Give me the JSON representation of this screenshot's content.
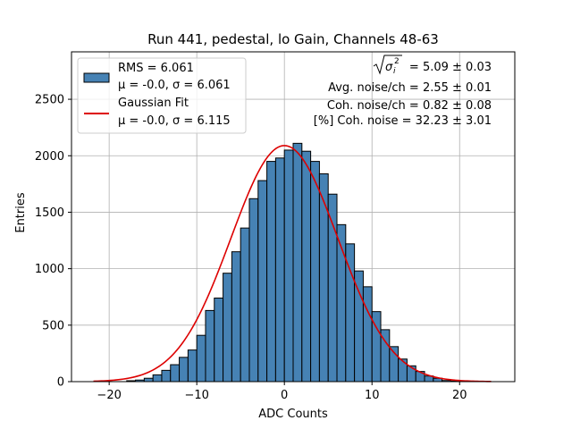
{
  "chart_data": {
    "type": "bar",
    "title": "Run 441, pedestal, lo Gain, Channels 48-63",
    "xlabel": "ADC Counts",
    "ylabel": "Entries",
    "xlim": [
      -24.3,
      26.3
    ],
    "ylim": [
      0,
      2920
    ],
    "xticks": [
      -20,
      -10,
      0,
      10,
      20
    ],
    "yticks": [
      0,
      500,
      1000,
      1500,
      2000,
      2500
    ],
    "xtick_labels": [
      "−20",
      "−10",
      "0",
      "10",
      "20"
    ],
    "ytick_labels": [
      "0",
      "500",
      "1000",
      "1500",
      "2000",
      "2500"
    ],
    "grid": true,
    "legend_position": "top-left",
    "colors": {
      "bars": "#4682b4",
      "fit": "#dd0000",
      "grid": "#b0b0b0"
    },
    "histogram": {
      "bin_start": -18,
      "bin_width": 1,
      "values": [
        8,
        14,
        30,
        60,
        100,
        150,
        215,
        280,
        410,
        630,
        740,
        960,
        1150,
        1360,
        1620,
        1780,
        1950,
        1980,
        2050,
        2110,
        2040,
        1950,
        1840,
        1660,
        1390,
        1220,
        980,
        840,
        620,
        460,
        310,
        200,
        140,
        90,
        50,
        30,
        10,
        5
      ]
    },
    "fit": {
      "mu": -0.0,
      "sigma": 6.115,
      "amplitude": 2090,
      "x_start": -21.8,
      "x_end": 23.6
    },
    "legend": [
      {
        "kind": "patch",
        "line1": "RMS = 6.061",
        "line2": "μ = -0.0, σ = 6.061"
      },
      {
        "kind": "line",
        "line1": "Gaussian Fit",
        "line2": "μ = -0.0, σ = 6.115"
      }
    ],
    "annotations": {
      "sqrt_text": "= 5.09 ± 0.03",
      "avg_noise": "Avg. noise/ch = 2.55 ± 0.01",
      "coh_noise": "Coh. noise/ch = 0.82 ± 0.08",
      "pct_coh_noise": "[%] Coh. noise = 32.23 ± 3.01"
    }
  }
}
